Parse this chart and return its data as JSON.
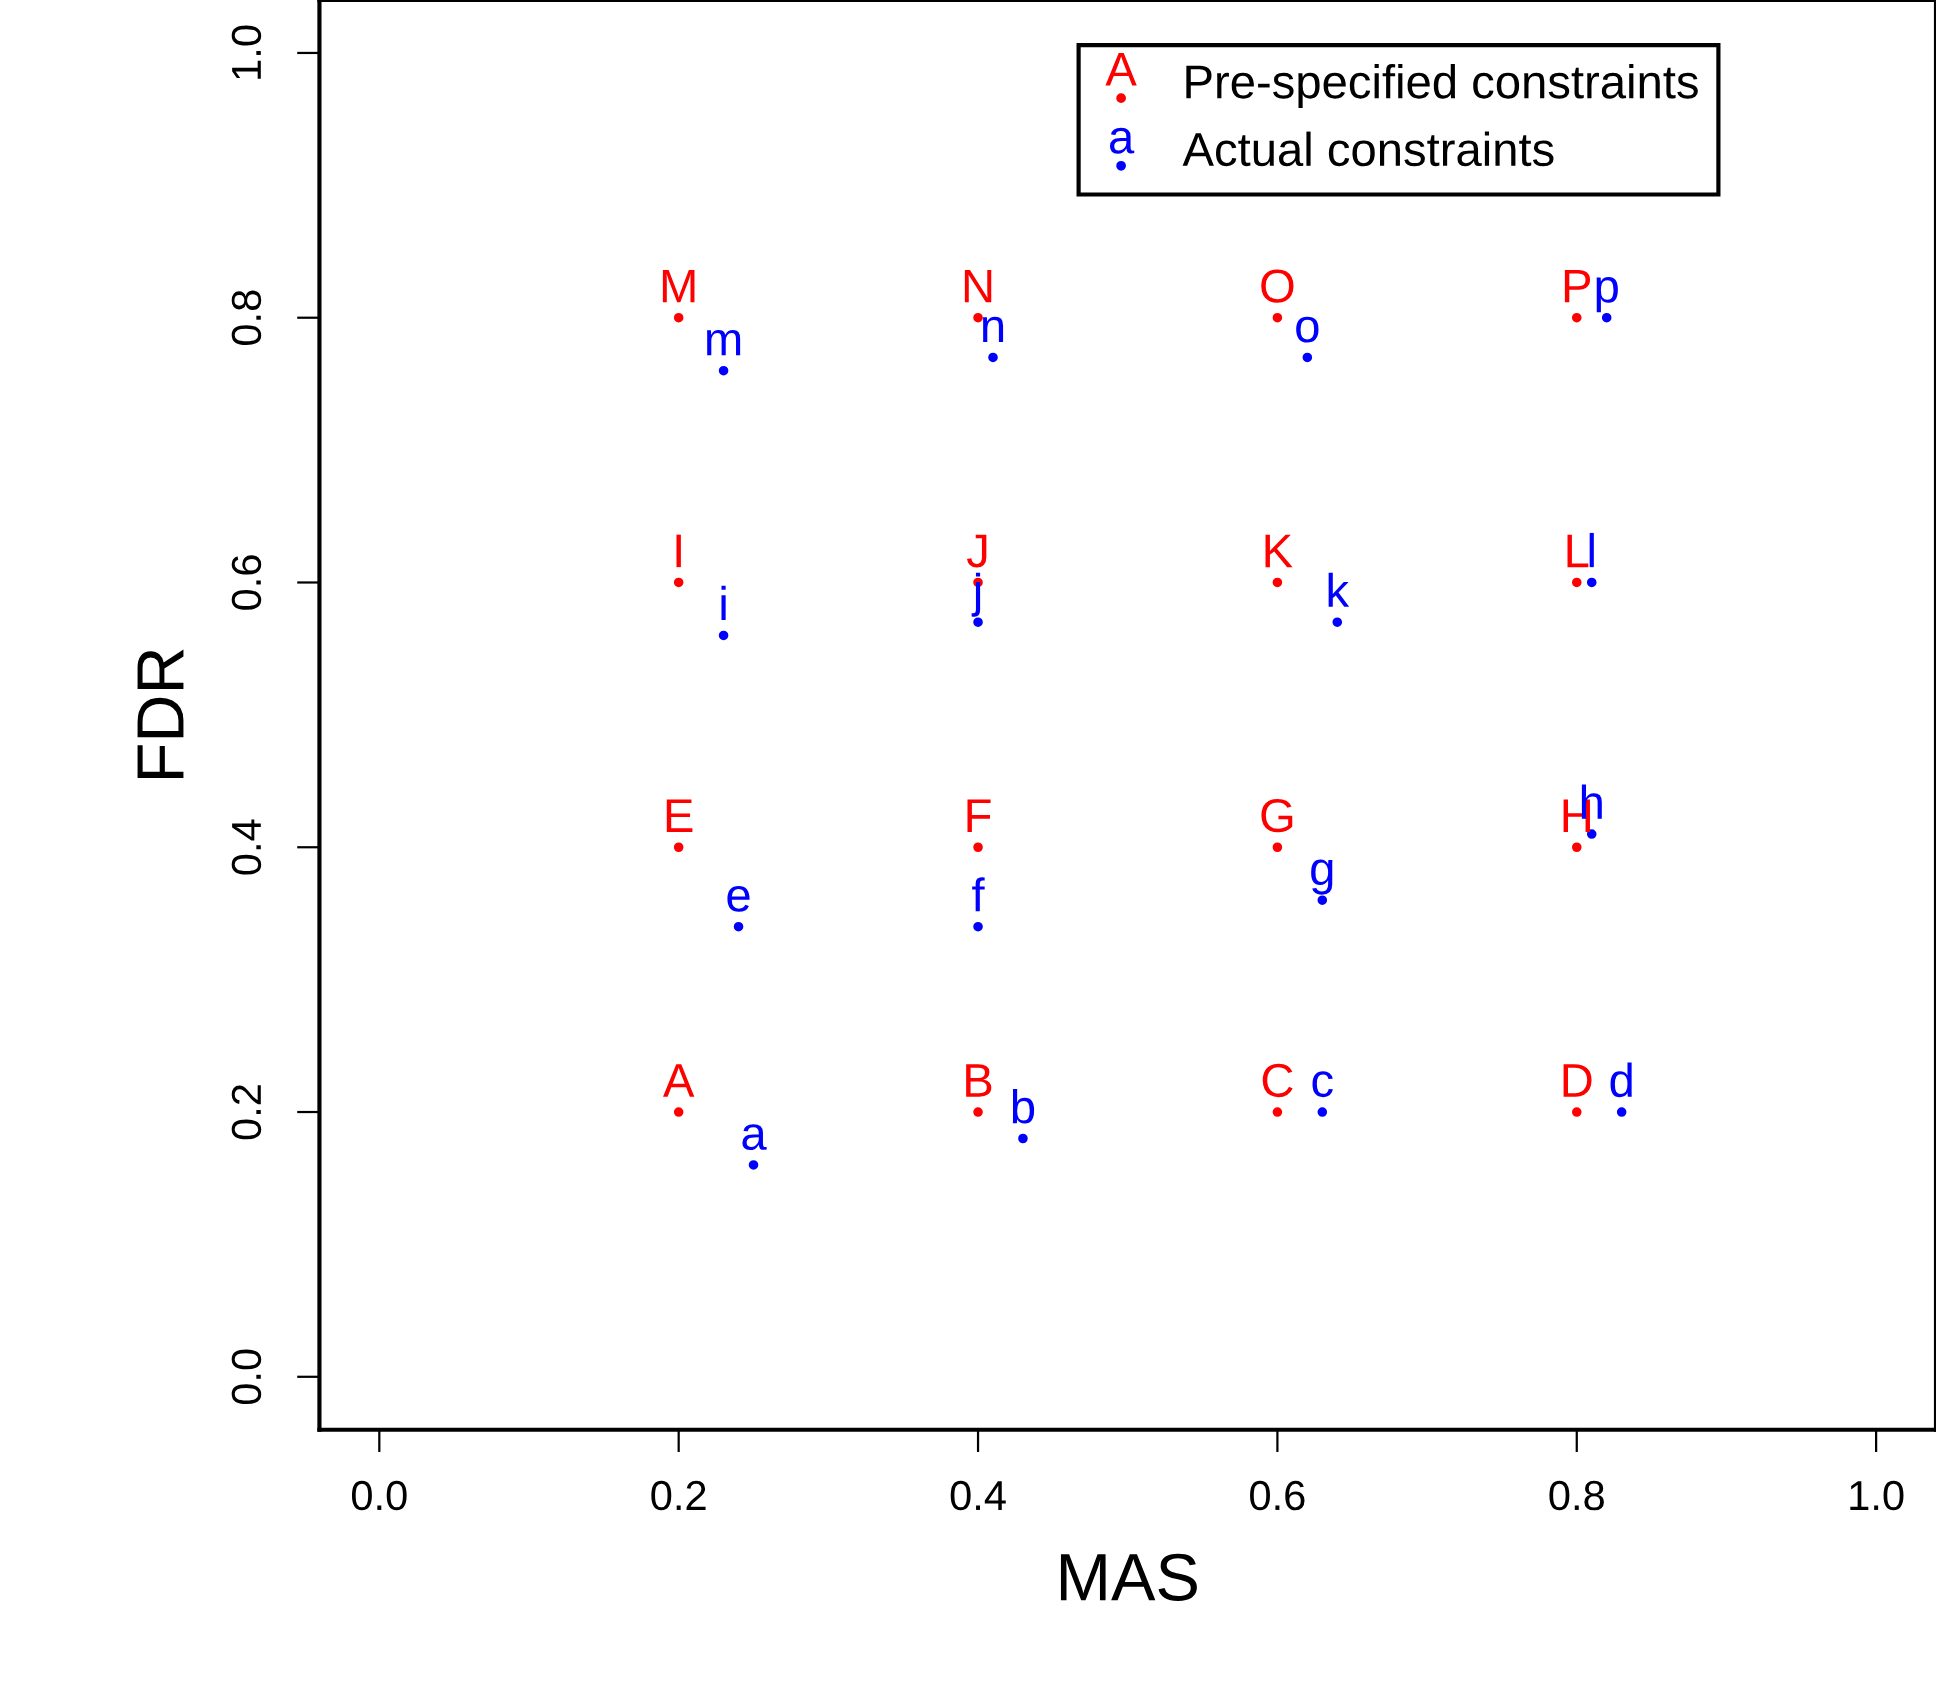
{
  "chart_data": {
    "type": "scatter",
    "xlabel": "MAS",
    "ylabel": "FDR",
    "xlim": [
      -0.04,
      1.04
    ],
    "ylim": [
      -0.04,
      1.04
    ],
    "xticks": [
      {
        "value": 0,
        "label": "0.0"
      },
      0.2,
      0.4,
      0.6,
      0.8,
      {
        "value": 1,
        "label": "1.0"
      }
    ],
    "yticks": [
      {
        "value": 0,
        "label": "0.0"
      },
      0.2,
      0.4,
      0.6,
      0.8,
      {
        "value": 1,
        "label": "1.0"
      }
    ],
    "grid": false,
    "legend": "top right",
    "marker": "circle",
    "series": [
      {
        "name": "Pre-specified constraints",
        "color": "#ff0000",
        "x": [
          0.2,
          0.4,
          0.6,
          0.8,
          0.2,
          0.4,
          0.6,
          0.8,
          0.2,
          0.4,
          0.6,
          0.8,
          0.2,
          0.4,
          0.6,
          0.8
        ],
        "values": [
          0.2,
          0.2,
          0.2,
          0.2,
          0.4,
          0.4,
          0.4,
          0.4,
          0.6,
          0.6,
          0.6,
          0.6,
          0.8,
          0.8,
          0.8,
          0.8
        ],
        "value_labels": [
          "A",
          "B",
          "C",
          "D",
          "E",
          "F",
          "G",
          "H",
          "I",
          "J",
          "K",
          "L",
          "M",
          "N",
          "O",
          "P"
        ]
      },
      {
        "name": "Actual constraints",
        "color": "#0000ff",
        "x": [
          0.25,
          0.43,
          0.63,
          0.83,
          0.24,
          0.4,
          0.63,
          0.81,
          0.23,
          0.4,
          0.64,
          0.81,
          0.23,
          0.41,
          0.62,
          0.82
        ],
        "values": [
          0.16,
          0.18,
          0.2,
          0.2,
          0.34,
          0.34,
          0.36,
          0.41,
          0.56,
          0.57,
          0.57,
          0.6,
          0.76,
          0.77,
          0.77,
          0.8
        ],
        "value_labels": [
          "a",
          "b",
          "c",
          "d",
          "e",
          "f",
          "g",
          "h",
          "i",
          "j",
          "k",
          "l",
          "m",
          "n",
          "o",
          "p"
        ]
      }
    ]
  }
}
